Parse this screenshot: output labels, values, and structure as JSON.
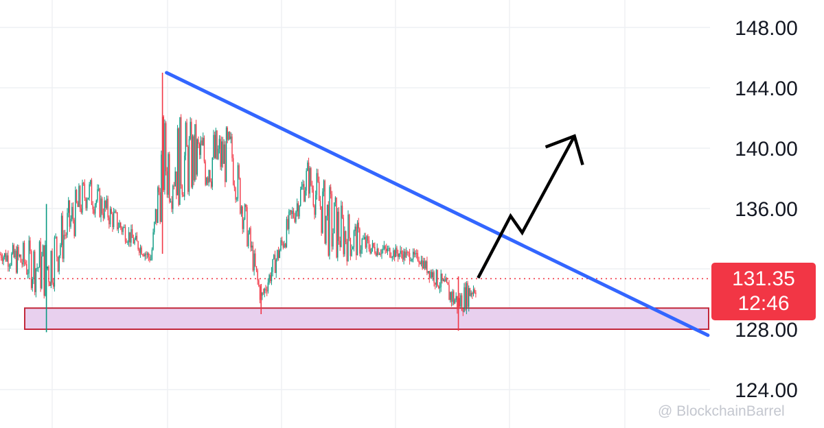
{
  "chart_data": {
    "type": "candlestick",
    "y_axis": {
      "side": "right",
      "range": [
        122,
        149
      ],
      "ticks": [
        "148.00",
        "144.00",
        "140.00",
        "136.00",
        "128.00",
        "124.00"
      ]
    },
    "grid": true,
    "colors": {
      "up": "#089981",
      "down": "#f23645",
      "trendline": "#3366ff",
      "projection": "#000000",
      "support_fill": "#e8d0ee",
      "support_border": "#c2283a",
      "price_line": "#f23645"
    },
    "current_price": "131.35",
    "countdown": "12:46",
    "price_series_approx": [
      {
        "bar": 0,
        "low": 132.3,
        "high": 133.6
      },
      {
        "bar": 40,
        "low": 127.8,
        "high": 136.3,
        "note": "spike low ~127.8 then rally"
      },
      {
        "bar": 75,
        "low": 135.0,
        "high": 139.4
      },
      {
        "bar": 130,
        "low": 132.1,
        "high": 133.2
      },
      {
        "bar": 140,
        "low": 133.0,
        "high": 145.0,
        "note": "peak ~145"
      },
      {
        "bar": 200,
        "low": 136.0,
        "high": 142.9
      },
      {
        "bar": 225,
        "low": 129.0,
        "high": 131.0,
        "note": "drop to ~129"
      },
      {
        "bar": 265,
        "low": 136.0,
        "high": 140.3
      },
      {
        "bar": 285,
        "low": 130.0,
        "high": 139.6
      },
      {
        "bar": 320,
        "low": 132.5,
        "high": 134.3
      },
      {
        "bar": 360,
        "low": 132.2,
        "high": 133.3
      },
      {
        "bar": 395,
        "low": 127.9,
        "high": 131.5,
        "note": "wick to ~127.9"
      },
      {
        "bar": 410,
        "low": 129.5,
        "high": 132.4
      }
    ],
    "annotations": {
      "trendline": {
        "from": {
          "bar": 140,
          "price": 145.0
        },
        "to": {
          "bar": 610,
          "price": 127.6
        }
      },
      "support_zone": {
        "low": 128.0,
        "high": 129.4
      },
      "projection_path": [
        {
          "bar": 412,
          "price": 131.4
        },
        {
          "bar": 440,
          "price": 135.5
        },
        {
          "bar": 450,
          "price": 134.4
        },
        {
          "bar": 495,
          "price": 140.8
        }
      ]
    }
  },
  "watermark": "@ BlockchainBarrel"
}
